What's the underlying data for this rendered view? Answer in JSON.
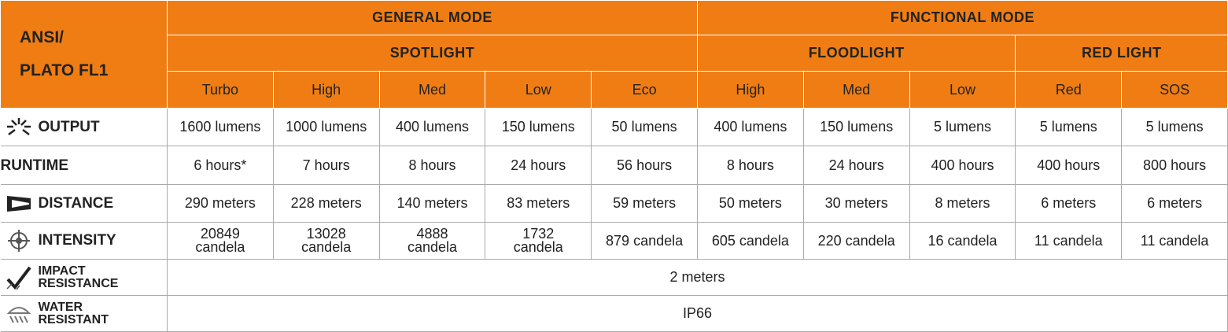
{
  "header": {
    "corner": [
      "ANSI/",
      "PLATO FL1"
    ],
    "modes": [
      "GENERAL MODE",
      "FUNCTIONAL MODE"
    ],
    "groups": [
      "SPOTLIGHT",
      "FLOODLIGHT",
      "RED LIGHT"
    ],
    "levels": [
      "Turbo",
      "High",
      "Med",
      "Low",
      "Eco",
      "High",
      "Med",
      "Low",
      "Red",
      "SOS"
    ]
  },
  "table": {
    "rows": [
      {
        "label": [
          "OUTPUT"
        ],
        "cells": [
          "1600 lumens",
          "1000 lumens",
          "400 lumens",
          "150 lumens",
          "50 lumens",
          "400 lumens",
          "150 lumens",
          "5 lumens",
          "5 lumens",
          "5 lumens"
        ]
      },
      {
        "label": [
          "RUNTIME"
        ],
        "cells": [
          "6 hours*",
          "7 hours",
          "8 hours",
          "24 hours",
          "56 hours",
          "8 hours",
          "24 hours",
          "400 hours",
          "400 hours",
          "800 hours"
        ]
      },
      {
        "label": [
          "DISTANCE"
        ],
        "cells": [
          "290 meters",
          "228 meters",
          "140 meters",
          "83 meters",
          "59 meters",
          "50 meters",
          "30 meters",
          "8 meters",
          "6 meters",
          "6 meters"
        ]
      },
      {
        "label": [
          "INTENSITY"
        ],
        "cells": [
          "20849\ncandela",
          "13028\ncandela",
          "4888\ncandela",
          "1732\ncandela",
          "879 candela",
          "605 candela",
          "220 candela",
          "16 candela",
          "11 candela",
          "11 candela"
        ]
      },
      {
        "label": [
          "IMPACT",
          "RESISTANCE"
        ],
        "cells": [
          "2 meters"
        ]
      },
      {
        "label": [
          "WATER",
          "RESISTANT"
        ],
        "cells": [
          "IP66"
        ]
      }
    ]
  }
}
